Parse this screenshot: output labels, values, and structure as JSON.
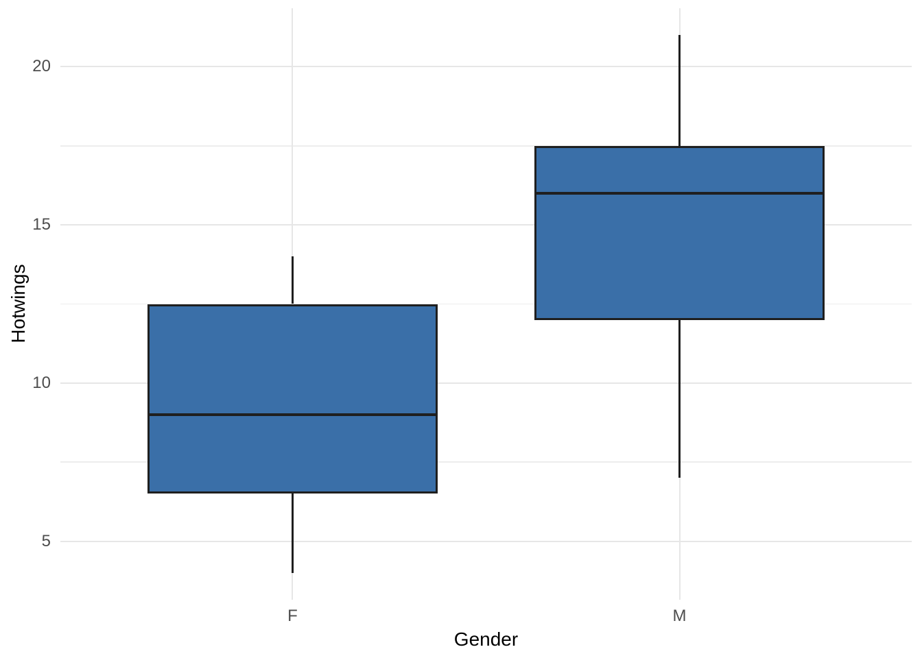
{
  "figure": {
    "kind": "boxplot-figure"
  },
  "chart_data": {
    "type": "boxplot",
    "title": "",
    "xlabel": "Gender",
    "ylabel": "Hotwings",
    "categories": [
      "F",
      "M"
    ],
    "series": [
      {
        "name": "F",
        "min": 4,
        "q1": 6.5,
        "median": 9,
        "q3": 12.5,
        "max": 14,
        "outliers": []
      },
      {
        "name": "M",
        "min": 7,
        "q1": 12,
        "median": 16,
        "q3": 17.5,
        "max": 21,
        "outliers": []
      }
    ],
    "ylim": [
      3.15,
      21.85
    ],
    "y_major_ticks": [
      5,
      10,
      15,
      20
    ],
    "y_minor_ticks": [
      7.5,
      12.5,
      17.5
    ],
    "y_tick_labels": [
      "5",
      "10",
      "15",
      "20"
    ],
    "grid": "major and minor horizontal lines, vertical line at each category",
    "legend_position": "none",
    "box_width_fraction": 0.75,
    "colors": {
      "box_fill": "#3a6fa8",
      "box_border": "#1f1f1f",
      "median": "#1f1f1f",
      "whisker": "#1f1f1f",
      "grid_major": "#e6e6e6",
      "grid_minor": "#ededed",
      "tick_label": "#4d4d4d",
      "axis_title": "#000000",
      "background": "#ffffff"
    }
  }
}
